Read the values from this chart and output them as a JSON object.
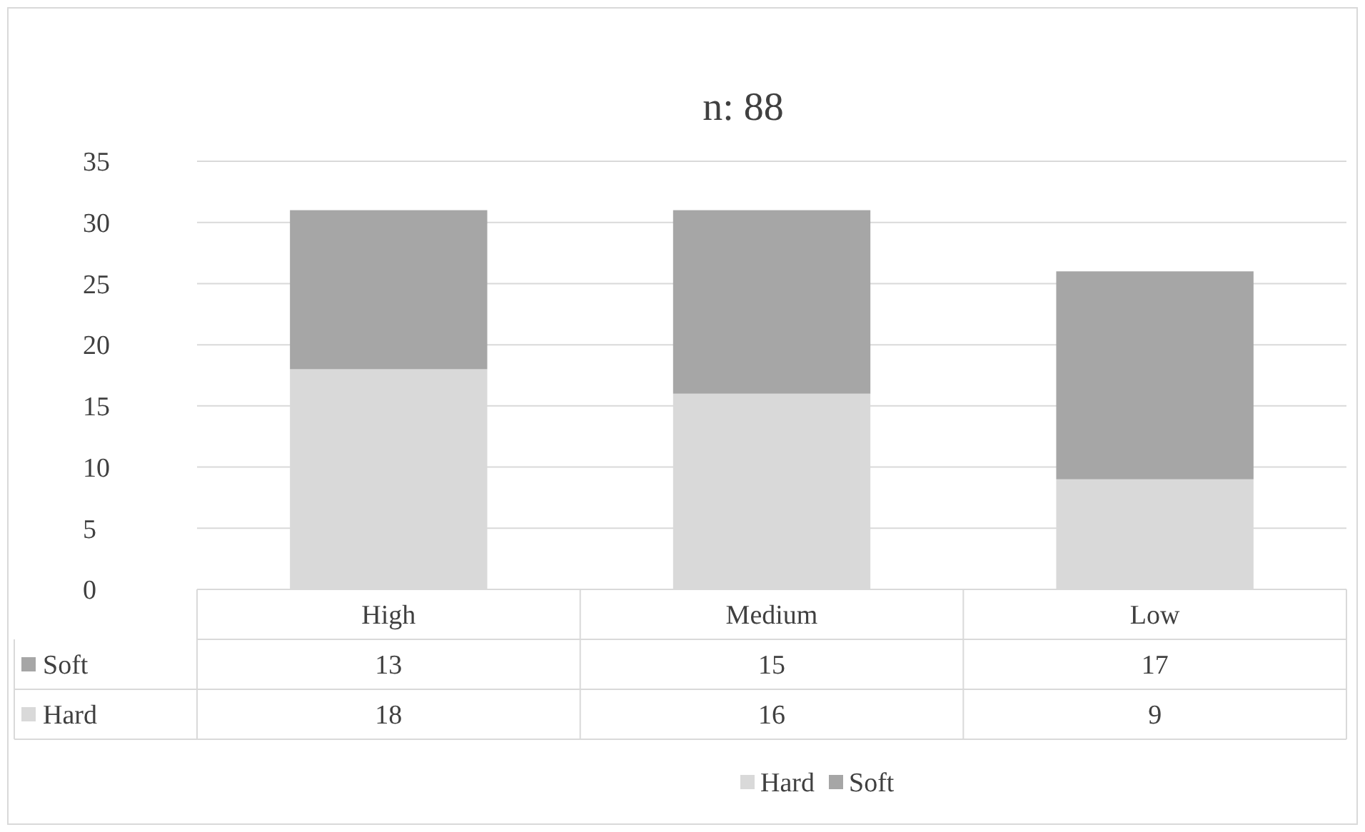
{
  "chart_data": {
    "type": "bar",
    "title": "n: 88",
    "categories": [
      "High",
      "Medium",
      "Low"
    ],
    "stacked": true,
    "series": [
      {
        "name": "Hard",
        "color": "#d9d9d9",
        "values": [
          18,
          16,
          9
        ]
      },
      {
        "name": "Soft",
        "color": "#a6a6a6",
        "values": [
          13,
          15,
          17
        ]
      }
    ],
    "ylim": [
      0,
      35
    ],
    "yticks": [
      0,
      5,
      10,
      15,
      20,
      25,
      30,
      35
    ],
    "grid": "y",
    "legend": "bottom",
    "data_labels": true
  }
}
